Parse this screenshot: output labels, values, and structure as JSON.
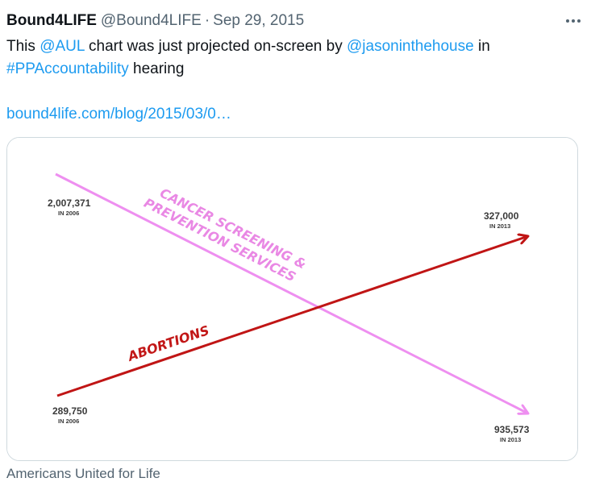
{
  "tweet": {
    "author_name": "Bound4LIFE",
    "handle": "@Bound4LIFE",
    "separator": "·",
    "date": "Sep 29, 2015",
    "text_part1": "This ",
    "mention1": "@AUL",
    "text_part2": " chart was just projected on-screen by ",
    "mention2": "@jasoninthehouse",
    "text_part3": " in",
    "hashtag": "#PPAccountability",
    "text_part4": " hearing",
    "url": "bound4life.com/blog/2015/03/0…",
    "media_caption": "Americans United for Life"
  },
  "icons": {
    "more": "more-horizontal-icon"
  },
  "colors": {
    "link": "#1d9bf0",
    "cancer_line": "#ee8ff0",
    "abortion_line": "#c01515"
  },
  "chart_data": {
    "type": "line",
    "series": [
      {
        "name": "CANCER SCREENING & PREVENTION SERVICES",
        "points": [
          {
            "value": "2,007,371",
            "period": "IN 2006"
          },
          {
            "value": "935,573",
            "period": "IN 2013"
          }
        ]
      },
      {
        "name": "ABORTIONS",
        "points": [
          {
            "value": "289,750",
            "period": "IN 2006"
          },
          {
            "value": "327,000",
            "period": "IN 2013"
          }
        ]
      }
    ],
    "labels": {
      "cancer_line1": "CANCER SCREENING &",
      "cancer_line2": "PREVENTION SERVICES",
      "abortions": "ABORTIONS"
    }
  }
}
